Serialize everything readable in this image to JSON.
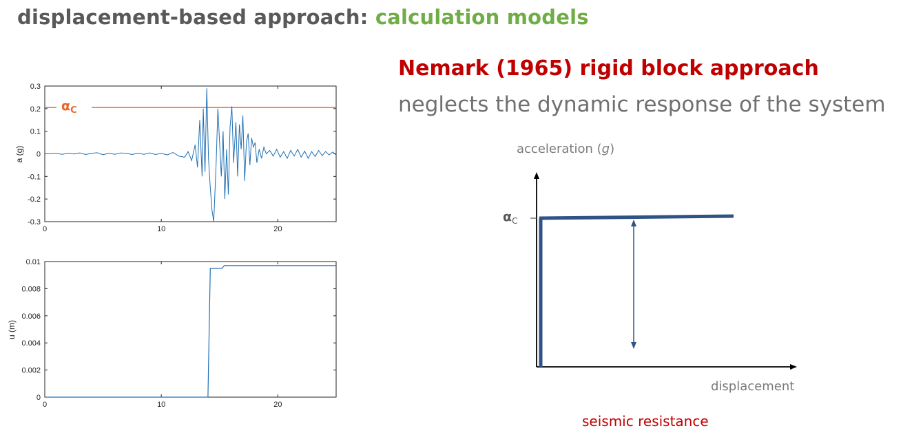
{
  "slide": {
    "title_main": "displacement-based approach: ",
    "title_accent": "calculation models",
    "subtitle": "Nemark (1965) rigid block approach",
    "tagline": "neglects the dynamic response of the system",
    "colors": {
      "title": "#595959",
      "accent": "#70ad47",
      "subtitle": "#c00000",
      "signal": "#1f6fb4",
      "threshold": "#e8662c",
      "diagram": "#2f5386"
    }
  },
  "diagram": {
    "y_label": "acceleration (",
    "y_label_unit": "g",
    "y_label_close": ")",
    "x_label": "displacement",
    "threshold_symbol": "α",
    "threshold_sub": "C",
    "caption": "seismic resistance"
  },
  "chart_data": [
    {
      "type": "line",
      "ylabel": "a (g)",
      "xlim": [
        0,
        25
      ],
      "ylim": [
        -0.3,
        0.3
      ],
      "x_ticks": [
        "0",
        "10",
        "20"
      ],
      "y_ticks": [
        "0.3",
        "0.2",
        "0.1",
        "0",
        "-0.1",
        "-0.2",
        "-0.3"
      ],
      "threshold": {
        "symbol": "α",
        "sub": "C",
        "value": 0.205
      },
      "series": [
        {
          "x": [
            0,
            0.5,
            1,
            1.5,
            2,
            2.5,
            3,
            3.5,
            4,
            4.5,
            5,
            5.5,
            6,
            6.5,
            7,
            7.5,
            8,
            8.5,
            9,
            9.5,
            10,
            10.5,
            11,
            11.5,
            12,
            12.3,
            12.6,
            12.9,
            13.1,
            13.3,
            13.5,
            13.6,
            13.75,
            13.9,
            14.05,
            14.2,
            14.35,
            14.5,
            14.7,
            14.85,
            15,
            15.15,
            15.3,
            15.45,
            15.6,
            15.75,
            15.9,
            16.05,
            16.2,
            16.4,
            16.55,
            16.7,
            16.85,
            17,
            17.15,
            17.3,
            17.45,
            17.6,
            17.75,
            17.9,
            18.05,
            18.2,
            18.4,
            18.6,
            18.8,
            19,
            19.3,
            19.6,
            19.9,
            20.2,
            20.5,
            20.8,
            21.1,
            21.4,
            21.7,
            22,
            22.3,
            22.6,
            22.9,
            23.2,
            23.5,
            23.8,
            24.1,
            24.4,
            24.7,
            25
          ],
          "y": [
            0,
            0.001,
            0.002,
            -0.002,
            0.003,
            -0.001,
            0.004,
            -0.003,
            0.002,
            0.005,
            -0.004,
            0.003,
            -0.002,
            0.004,
            0.002,
            -0.003,
            0.003,
            -0.002,
            0.004,
            -0.003,
            0.002,
            -0.005,
            0.006,
            -0.01,
            -0.015,
            0.01,
            -0.03,
            0.04,
            -0.06,
            0.15,
            -0.1,
            0.2,
            -0.08,
            0.29,
            -0.02,
            -0.15,
            -0.25,
            -0.3,
            -0.05,
            0.2,
            0.05,
            -0.1,
            0.1,
            -0.2,
            0.02,
            -0.18,
            0.12,
            0.21,
            -0.04,
            0.14,
            -0.1,
            0.13,
            0.02,
            0.17,
            -0.12,
            0.05,
            0.09,
            -0.05,
            0.07,
            0.03,
            0.05,
            -0.04,
            0.02,
            -0.02,
            0.03,
            0.0,
            0.015,
            -0.01,
            0.02,
            -0.015,
            0.01,
            -0.02,
            0.015,
            -0.01,
            0.02,
            -0.015,
            0.012,
            -0.02,
            0.01,
            -0.012,
            0.015,
            -0.008,
            0.01,
            -0.005,
            0.008,
            -0.005
          ]
        }
      ]
    },
    {
      "type": "line",
      "ylabel": "u (m)",
      "xlim": [
        0,
        25
      ],
      "ylim": [
        0,
        0.01
      ],
      "x_ticks": [
        "0",
        "10",
        "20"
      ],
      "y_ticks": [
        "0.01",
        "0.008",
        "0.006",
        "0.004",
        "0.002",
        "0"
      ],
      "series": [
        {
          "x": [
            0,
            14.0,
            14.2,
            14.4,
            15.2,
            15.4,
            17,
            25
          ],
          "y": [
            0,
            0,
            0.0095,
            0.0095,
            0.0095,
            0.0097,
            0.0097,
            0.0097
          ]
        }
      ]
    }
  ]
}
